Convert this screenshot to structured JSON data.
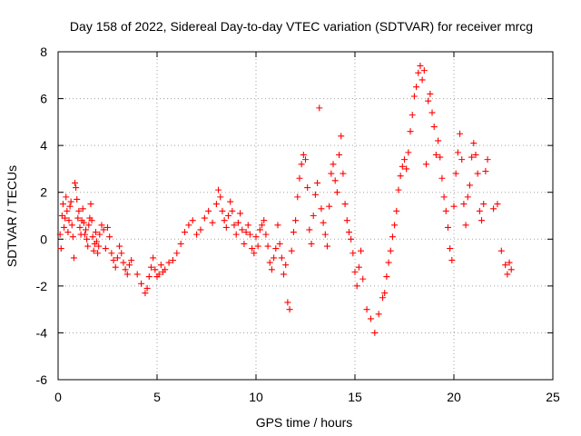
{
  "chart_data": {
    "type": "scatter",
    "title": "Day 158 of 2022, Sidereal Day-to-day VTEC variation (SDTVAR) for receiver mrcg",
    "xlabel": "GPS time / hours",
    "ylabel": "SDTVAR / TECUs",
    "xlim": [
      0,
      25
    ],
    "ylim": [
      -6,
      8
    ],
    "xticks": [
      0,
      5,
      10,
      15,
      20,
      25
    ],
    "yticks": [
      -6,
      -4,
      -2,
      0,
      2,
      4,
      6,
      8
    ],
    "xtick_labels": [
      "0",
      "5",
      "10",
      "15",
      "20",
      "25"
    ],
    "ytick_labels": [
      "-6",
      "-4",
      "-2",
      "0",
      "2",
      "4",
      "6",
      "8"
    ],
    "grid": true,
    "marker": "+",
    "marker_color": "#ff0000",
    "series": [
      {
        "name": "SDTVAR",
        "x": [
          0.1,
          0.15,
          0.2,
          0.25,
          0.3,
          0.35,
          0.4,
          0.45,
          0.5,
          0.55,
          0.6,
          0.65,
          0.7,
          0.75,
          0.8,
          0.85,
          0.9,
          0.95,
          1.0,
          1.05,
          1.1,
          1.15,
          1.2,
          1.25,
          1.3,
          1.35,
          1.4,
          1.45,
          1.5,
          1.55,
          1.6,
          1.65,
          1.7,
          1.75,
          1.8,
          1.85,
          1.9,
          1.95,
          2.0,
          2.05,
          2.1,
          2.2,
          2.3,
          2.4,
          2.5,
          2.6,
          2.7,
          2.8,
          2.9,
          3.0,
          3.1,
          3.2,
          3.3,
          3.4,
          3.5,
          3.6,
          3.7,
          4.0,
          4.2,
          4.4,
          4.5,
          4.6,
          4.7,
          4.8,
          4.9,
          5.0,
          5.1,
          5.2,
          5.3,
          5.4,
          5.6,
          5.8,
          6.0,
          6.2,
          6.4,
          6.6,
          6.8,
          7.0,
          7.2,
          7.4,
          7.6,
          7.8,
          8.0,
          8.1,
          8.2,
          8.3,
          8.4,
          8.5,
          8.6,
          8.7,
          8.8,
          8.9,
          9.0,
          9.1,
          9.2,
          9.3,
          9.4,
          9.5,
          9.6,
          9.7,
          9.8,
          9.9,
          10.0,
          10.1,
          10.2,
          10.3,
          10.4,
          10.5,
          10.6,
          10.7,
          10.8,
          10.9,
          11.0,
          11.1,
          11.2,
          11.3,
          11.4,
          11.5,
          11.6,
          11.7,
          11.8,
          11.9,
          12.0,
          12.1,
          12.2,
          12.3,
          12.4,
          12.5,
          12.6,
          12.7,
          12.8,
          12.9,
          13.0,
          13.1,
          13.2,
          13.3,
          13.4,
          13.5,
          13.6,
          13.7,
          13.8,
          13.9,
          14.0,
          14.1,
          14.2,
          14.3,
          14.4,
          14.5,
          14.6,
          14.7,
          14.8,
          14.9,
          15.0,
          15.1,
          15.2,
          15.3,
          15.4,
          15.6,
          15.8,
          16.0,
          16.2,
          16.4,
          16.5,
          16.6,
          16.7,
          16.8,
          16.9,
          17.0,
          17.1,
          17.2,
          17.3,
          17.4,
          17.5,
          17.6,
          17.7,
          17.8,
          17.9,
          18.0,
          18.1,
          18.2,
          18.3,
          18.4,
          18.5,
          18.6,
          18.7,
          18.8,
          18.9,
          19.0,
          19.1,
          19.2,
          19.3,
          19.4,
          19.5,
          19.6,
          19.7,
          19.8,
          19.9,
          20.0,
          20.1,
          20.2,
          20.3,
          20.4,
          20.5,
          20.6,
          20.7,
          20.8,
          20.9,
          21.0,
          21.1,
          21.2,
          21.3,
          21.4,
          21.5,
          21.6,
          21.7,
          22.0,
          22.2,
          22.4,
          22.6,
          22.7,
          22.8,
          22.9
        ],
        "y": [
          0.2,
          -0.4,
          1.0,
          1.5,
          0.5,
          0.9,
          1.8,
          1.2,
          0.3,
          0.8,
          1.4,
          1.6,
          0.6,
          0.1,
          -0.8,
          2.4,
          2.2,
          1.7,
          0.9,
          1.2,
          0.5,
          0.2,
          0.8,
          1.3,
          0.7,
          0.2,
          0.4,
          0.0,
          -0.3,
          0.6,
          0.9,
          1.5,
          0.8,
          0.1,
          -0.5,
          -0.2,
          0.3,
          -0.1,
          -0.6,
          -0.3,
          0.2,
          0.6,
          0.4,
          -0.4,
          0.5,
          0.1,
          -0.6,
          -0.9,
          -1.2,
          -0.8,
          -0.3,
          -0.6,
          -1.0,
          -1.3,
          -1.5,
          -1.1,
          -0.9,
          -1.5,
          -1.9,
          -2.3,
          -2.1,
          -1.6,
          -1.2,
          -0.8,
          -1.3,
          -1.6,
          -1.5,
          -1.1,
          -1.4,
          -1.3,
          -1.0,
          -0.9,
          -0.6,
          -0.2,
          0.3,
          0.6,
          0.8,
          0.2,
          0.4,
          0.9,
          1.2,
          0.7,
          1.5,
          2.1,
          1.8,
          1.2,
          0.8,
          0.5,
          1.0,
          1.6,
          1.2,
          0.6,
          0.2,
          0.7,
          1.1,
          0.4,
          -0.2,
          0.3,
          0.6,
          0.2,
          -0.4,
          -0.6,
          0.1,
          -0.3,
          0.4,
          0.6,
          0.8,
          0.2,
          -0.3,
          -1.0,
          -1.3,
          -0.8,
          -0.4,
          0.6,
          -0.2,
          -0.8,
          -1.5,
          -1.1,
          -2.7,
          -3.0,
          -0.5,
          0.3,
          0.8,
          1.8,
          2.6,
          3.2,
          3.6,
          3.4,
          2.2,
          0.4,
          -0.2,
          1.0,
          1.9,
          2.4,
          5.6,
          1.3,
          0.7,
          0.2,
          -0.3,
          1.4,
          2.8,
          3.2,
          2.5,
          2.0,
          3.6,
          4.4,
          2.8,
          1.5,
          0.8,
          0.3,
          0.0,
          -0.6,
          -1.4,
          -2.0,
          -1.2,
          -0.5,
          -1.7,
          -3.0,
          -3.4,
          -4.0,
          -3.2,
          -2.5,
          -2.3,
          -1.6,
          -1.0,
          -0.5,
          0.1,
          0.6,
          1.2,
          2.1,
          2.7,
          3.1,
          3.4,
          3.0,
          3.7,
          4.6,
          5.3,
          6.1,
          6.5,
          7.1,
          7.4,
          6.8,
          7.2,
          3.2,
          5.9,
          6.2,
          5.4,
          4.8,
          3.6,
          4.2,
          3.5,
          2.6,
          1.8,
          1.2,
          0.5,
          -0.4,
          -0.9,
          1.4,
          2.8,
          3.7,
          4.5,
          3.4,
          1.5,
          0.6,
          1.8,
          2.3,
          3.5,
          4.1,
          3.6,
          2.8,
          1.2,
          0.8,
          1.5,
          2.9,
          3.4,
          1.3,
          1.5,
          -0.5,
          -1.1,
          -1.5,
          -1.0,
          -1.3
        ]
      }
    ]
  }
}
